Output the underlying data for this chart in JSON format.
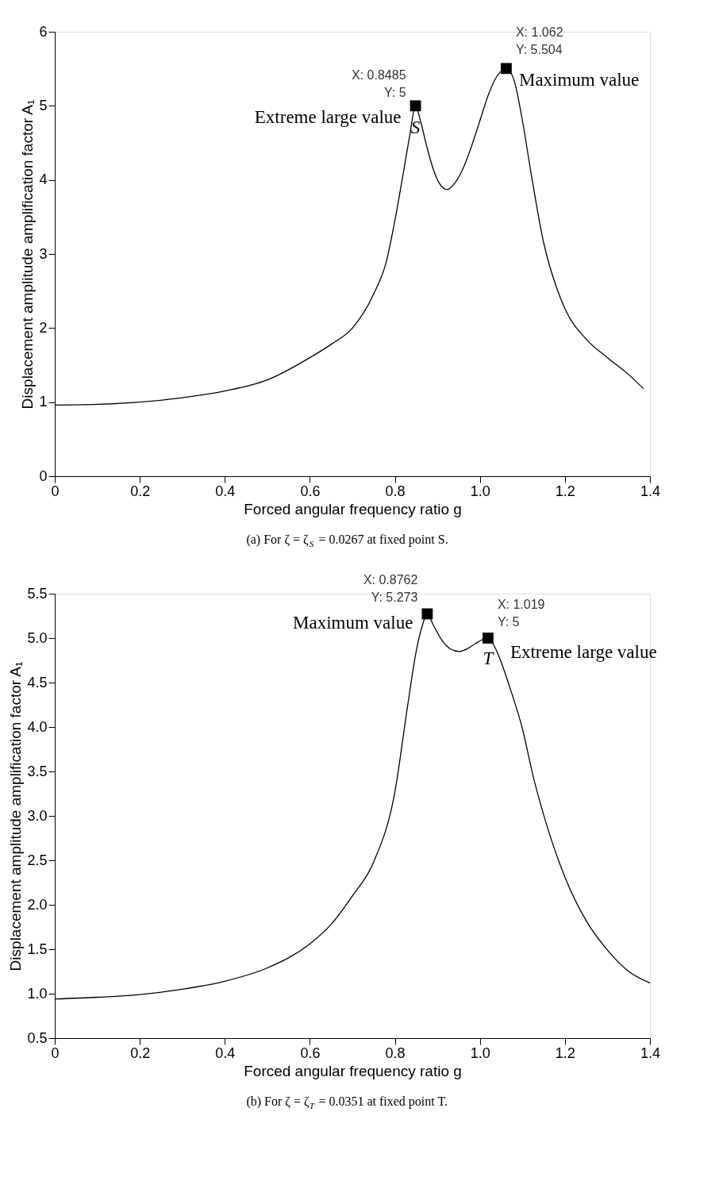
{
  "chart_data": [
    {
      "type": "line",
      "title": "(a) For ζ = ζ$_{S}$ = 0.0267 at fixed point S.",
      "xlabel": "Forced angular frequency ratio g",
      "ylabel": "Displacement amplitude amplification factor A₁",
      "xlim": [
        0,
        1.4
      ],
      "ylim": [
        0,
        6
      ],
      "xticks": [
        0,
        0.2,
        0.4,
        0.6,
        0.8,
        {
          "value": 1,
          "label": "1.0"
        },
        1.2,
        1.4
      ],
      "yticks": [
        0,
        1,
        2,
        3,
        4,
        5,
        6
      ],
      "grid": false,
      "series": [
        {
          "color": "#000000",
          "marker": "none",
          "x": [
            0,
            0.1,
            0.2,
            0.3,
            0.4,
            0.5,
            0.6,
            0.65,
            0.7,
            0.75,
            0.78,
            0.8,
            0.82,
            0.835,
            0.8485,
            0.86,
            0.875,
            0.89,
            0.905,
            0.923,
            0.94,
            0.96,
            0.98,
            1.0,
            1.02,
            1.04,
            1.062,
            1.08,
            1.1,
            1.12,
            1.15,
            1.18,
            1.2,
            1.25,
            1.3,
            1.35,
            1.385
          ],
          "values": [
            0.96,
            0.97,
            1.0,
            1.06,
            1.15,
            1.3,
            1.6,
            1.78,
            2.0,
            2.46,
            2.9,
            3.45,
            4.1,
            4.6,
            5.0,
            4.8,
            4.45,
            4.15,
            3.95,
            3.87,
            3.95,
            4.15,
            4.45,
            4.8,
            5.15,
            5.4,
            5.504,
            5.35,
            4.8,
            4.1,
            3.15,
            2.55,
            2.26,
            1.85,
            1.6,
            1.37,
            1.18
          ]
        },
        {
          "type": "scatter",
          "color": "#000000",
          "marker": "square",
          "x": [
            0.8485,
            1.062
          ],
          "values": [
            5,
            5.504
          ]
        }
      ],
      "annotations": [
        {
          "text": "X: 0.8485\nY: 5",
          "x": 0.8485,
          "y": 5
        },
        {
          "text": "X: 1.062\nY: 5.504",
          "x": 1.062,
          "y": 5.504
        },
        {
          "text": "Extreme large value",
          "x": 0.8485,
          "y": 5
        },
        {
          "text": "S",
          "x": 0.8485,
          "y": 5
        },
        {
          "text": "Maximum value",
          "x": 1.062,
          "y": 5.504
        }
      ]
    },
    {
      "type": "line",
      "title": "(b) For ζ = ζ$_{T}$ = 0.0351 at fixed point T.",
      "xlabel": "Forced angular frequency ratio g",
      "ylabel": "Displacement amplitude amplification factor A₁",
      "xlim": [
        0,
        1.4
      ],
      "ylim": [
        0.5,
        5.5
      ],
      "xticks": [
        0,
        0.2,
        0.4,
        0.6,
        0.8,
        {
          "value": 1,
          "label": "1.0"
        },
        1.2,
        1.4
      ],
      "yticks": [
        0.5,
        {
          "value": 1,
          "label": "1.0"
        },
        1.5,
        {
          "value": 2,
          "label": "2.0"
        },
        2.5,
        {
          "value": 3,
          "label": "3.0"
        },
        3.5,
        {
          "value": 4,
          "label": "4.0"
        },
        4.5,
        {
          "value": 5,
          "label": "5.0"
        },
        5.5
      ],
      "grid": false,
      "series": [
        {
          "color": "#000000",
          "marker": "none",
          "x": [
            0,
            0.1,
            0.2,
            0.3,
            0.4,
            0.5,
            0.6,
            0.65,
            0.7,
            0.75,
            0.8,
            0.83,
            0.85,
            0.865,
            0.8762,
            0.89,
            0.91,
            0.93,
            0.951,
            0.97,
            0.99,
            1.005,
            1.019,
            1.035,
            1.05,
            1.07,
            1.1,
            1.125,
            1.15,
            1.2,
            1.25,
            1.3,
            1.35,
            1.4
          ],
          "values": [
            0.94,
            0.96,
            0.99,
            1.05,
            1.14,
            1.29,
            1.56,
            1.78,
            2.1,
            2.48,
            3.27,
            4.24,
            4.85,
            5.15,
            5.273,
            5.15,
            4.98,
            4.88,
            4.85,
            4.88,
            4.94,
            4.98,
            5.0,
            4.9,
            4.73,
            4.45,
            3.98,
            3.45,
            3.01,
            2.31,
            1.82,
            1.49,
            1.25,
            1.12
          ]
        },
        {
          "type": "scatter",
          "color": "#000000",
          "marker": "square",
          "x": [
            0.8762,
            1.019
          ],
          "values": [
            5.273,
            5
          ]
        }
      ],
      "annotations": [
        {
          "text": "X: 0.8762\nY: 5.273",
          "x": 0.8762,
          "y": 5.273
        },
        {
          "text": "X: 1.019\nY: 5",
          "x": 1.019,
          "y": 5
        },
        {
          "text": "Maximum value",
          "x": 0.8762,
          "y": 5.273
        },
        {
          "text": "T",
          "x": 1.019,
          "y": 5
        },
        {
          "text": "Extreme large value",
          "x": 1.019,
          "y": 5
        }
      ]
    }
  ]
}
